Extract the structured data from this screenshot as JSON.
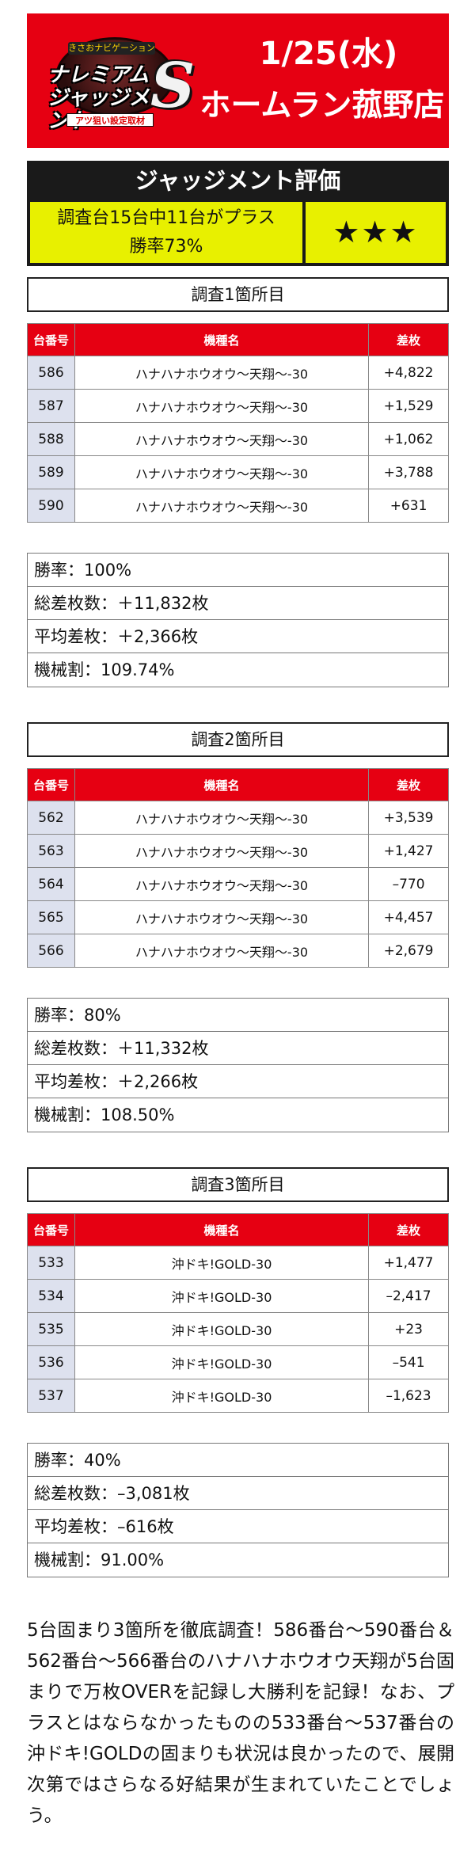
{
  "header": {
    "logo": {
      "tag": "きさおナビゲーション",
      "brand": "ナレミアム ジャッジメント",
      "mark": "S",
      "sub": "アツ狙い設定取材"
    },
    "date": "1/25(水)",
    "store": "ホームラン菰野店"
  },
  "judgement": {
    "title": "ジャッジメント評価",
    "line1": "調査台15台中11台がプラス",
    "line2": "勝率73%",
    "stars": "★★★"
  },
  "table_headers": {
    "num": "台番号",
    "name": "機種名",
    "diff": "差枚"
  },
  "sections": [
    {
      "title": "調査1箇所目",
      "rows": [
        {
          "num": "586",
          "name": "ハナハナホウオウ〜天翔〜-30",
          "diff": "+4,822"
        },
        {
          "num": "587",
          "name": "ハナハナホウオウ〜天翔〜-30",
          "diff": "+1,529"
        },
        {
          "num": "588",
          "name": "ハナハナホウオウ〜天翔〜-30",
          "diff": "+1,062"
        },
        {
          "num": "589",
          "name": "ハナハナホウオウ〜天翔〜-30",
          "diff": "+3,788"
        },
        {
          "num": "590",
          "name": "ハナハナホウオウ〜天翔〜-30",
          "diff": "+631"
        }
      ],
      "stats": [
        "勝率：100%",
        "総差枚数：＋11,832枚",
        "平均差枚：＋2,366枚",
        "機械割：109.74%"
      ]
    },
    {
      "title": "調査2箇所目",
      "rows": [
        {
          "num": "562",
          "name": "ハナハナホウオウ〜天翔〜-30",
          "diff": "+3,539"
        },
        {
          "num": "563",
          "name": "ハナハナホウオウ〜天翔〜-30",
          "diff": "+1,427"
        },
        {
          "num": "564",
          "name": "ハナハナホウオウ〜天翔〜-30",
          "diff": "–770"
        },
        {
          "num": "565",
          "name": "ハナハナホウオウ〜天翔〜-30",
          "diff": "+4,457"
        },
        {
          "num": "566",
          "name": "ハナハナホウオウ〜天翔〜-30",
          "diff": "+2,679"
        }
      ],
      "stats": [
        "勝率：80%",
        "総差枚数：＋11,332枚",
        "平均差枚：＋2,266枚",
        "機械割：108.50%"
      ]
    },
    {
      "title": "調査3箇所目",
      "rows": [
        {
          "num": "533",
          "name": "沖ドキ!GOLD-30",
          "diff": "+1,477"
        },
        {
          "num": "534",
          "name": "沖ドキ!GOLD-30",
          "diff": "–2,417"
        },
        {
          "num": "535",
          "name": "沖ドキ!GOLD-30",
          "diff": "+23"
        },
        {
          "num": "536",
          "name": "沖ドキ!GOLD-30",
          "diff": "–541"
        },
        {
          "num": "537",
          "name": "沖ドキ!GOLD-30",
          "diff": "–1,623"
        }
      ],
      "stats": [
        "勝率：40%",
        "総差枚数：–3,081枚",
        "平均差枚：–616枚",
        "機械割：91.00%"
      ]
    }
  ],
  "summary": "5台固まり3箇所を徹底調査！586番台〜590番台＆562番台〜566番台のハナハナホウオウ天翔が5台固まりで万枚OVERを記録し大勝利を記録！なお、プラスとはならなかったものの533番台〜537番台の沖ドキ!GOLDの固まりも状況は良かったので、展開次第ではさらなる好結果が生まれていたことでしょう。",
  "colors": {
    "accent_red": "#e60012",
    "highlight_yellow": "#e8f000",
    "num_cell_bg": "#dde1ee"
  }
}
